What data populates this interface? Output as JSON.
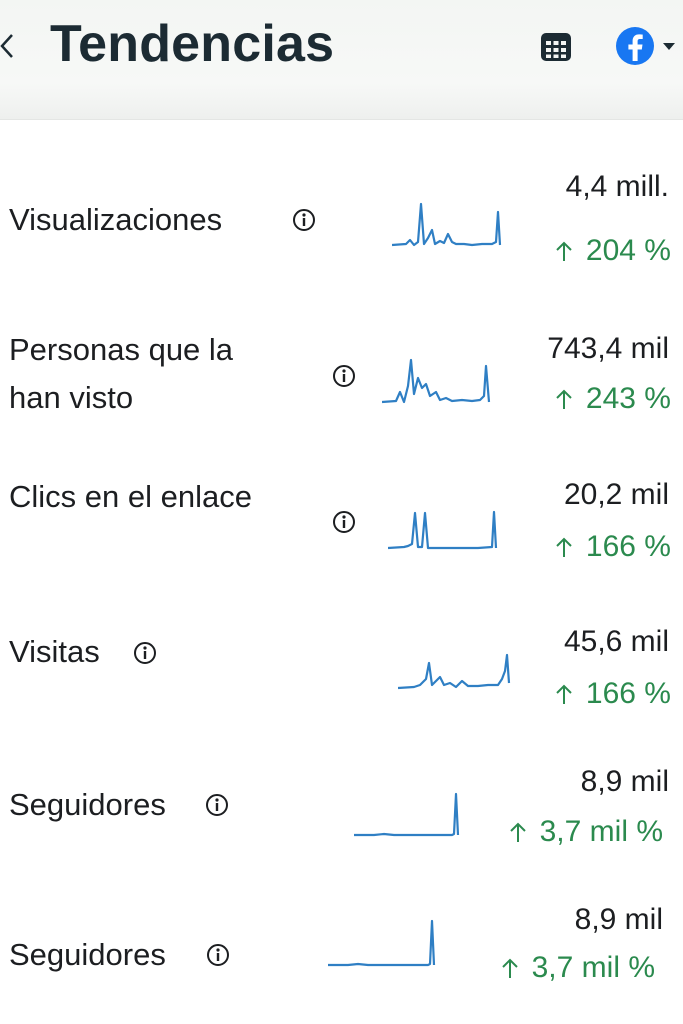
{
  "header": {
    "title": "Tendencias",
    "back_icon": "chevron-left-icon",
    "calendar_icon": "calendar-icon",
    "platform_icon": "facebook-icon",
    "platform_dropdown_icon": "caret-down-icon",
    "brand_color": "#1877f2"
  },
  "colors": {
    "positive_change": "#2b8a4e",
    "sparkline": "#2f7fc4"
  },
  "metrics": [
    {
      "label": "Visualizaciones",
      "value": "4,4 mill.",
      "change": "204 %",
      "trend": "up"
    },
    {
      "label_line1": "Personas que la",
      "label_line2": "han visto",
      "value": "743,4 mil",
      "change": "243 %",
      "trend": "up"
    },
    {
      "label": "Clics en el enlace",
      "value": "20,2 mil",
      "change": "166 %",
      "trend": "up"
    },
    {
      "label": "Visitas",
      "value": "45,6 mil",
      "change": "166 %",
      "trend": "up"
    },
    {
      "label": "Seguidores",
      "value": "8,9 mil",
      "change": "3,7 mil %",
      "trend": "up"
    },
    {
      "label": "Seguidores",
      "value": "8,9 mil",
      "change": "3,7 mil %",
      "trend": "up"
    }
  ]
}
